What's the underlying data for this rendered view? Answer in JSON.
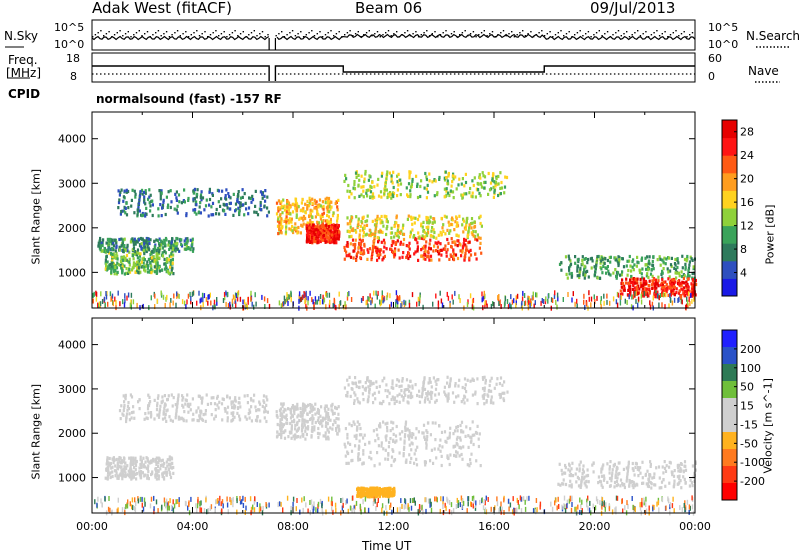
{
  "header": {
    "left": "Adak West (fitACF)",
    "center": "Beam 06",
    "right": "09/Jul/2013"
  },
  "top_panel": {
    "left_label": "N.Sky",
    "right_label": "N.Search",
    "left_ticks": [
      "10^5",
      "10^0"
    ],
    "right_ticks": [
      "10^5",
      "10^0"
    ]
  },
  "freq_panel": {
    "left_label_line1": "Freq.",
    "left_label_line2": "[MHz]",
    "right_label": "Nave",
    "left_ticks": [
      "18",
      "8"
    ],
    "right_ticks": [
      "60",
      "0"
    ]
  },
  "cpid": {
    "label": "CPID",
    "text": "normalsound (fast) -157 RF"
  },
  "colors": {
    "power_scale": [
      "#1a1ae6",
      "#2e4fbf",
      "#2e7a5c",
      "#3aa35a",
      "#8fd13a",
      "#ffd21f",
      "#ff9d1f",
      "#ff5a14",
      "#ff1414",
      "#e60000"
    ],
    "velocity_scale": [
      "#2020ff",
      "#2a52c8",
      "#2e7a55",
      "#6fbf3a",
      "#cfcfcf",
      "#cfcfcf",
      "#ffb21f",
      "#ff7a1f",
      "#ff3a14",
      "#ff0000"
    ]
  },
  "chart_data": [
    {
      "type": "heatmap",
      "name": "Power",
      "ylabel": "Slant Range [km]",
      "yticks": [
        1000,
        2000,
        3000,
        4000
      ],
      "ylim": [
        200,
        4600
      ],
      "xlim": [
        0,
        24
      ],
      "colorbar_label": "Power [dB]",
      "colorbar_ticks": [
        "4",
        "8",
        "12",
        "16",
        "20",
        "24",
        "28"
      ],
      "colorbar_range": [
        0,
        30
      ],
      "features": [
        {
          "t0": 0.5,
          "t1": 3.2,
          "r0": 1000,
          "r1": 1500,
          "v": 12
        },
        {
          "t0": 0.2,
          "t1": 4.0,
          "r0": 1500,
          "r1": 1800,
          "v": 9
        },
        {
          "t0": 1.0,
          "t1": 7.0,
          "r0": 2300,
          "r1": 2900,
          "v": 7
        },
        {
          "t0": 7.3,
          "t1": 9.8,
          "r0": 1900,
          "r1": 2700,
          "v": 18
        },
        {
          "t0": 8.5,
          "t1": 9.8,
          "r0": 1700,
          "r1": 2100,
          "v": 26
        },
        {
          "t0": 10.0,
          "t1": 15.5,
          "r0": 1300,
          "r1": 1800,
          "v": 24
        },
        {
          "t0": 10.0,
          "t1": 15.5,
          "r0": 1800,
          "r1": 2300,
          "v": 16
        },
        {
          "t0": 10.0,
          "t1": 16.5,
          "r0": 2700,
          "r1": 3300,
          "v": 14
        },
        {
          "t0": 18.5,
          "t1": 24.0,
          "r0": 900,
          "r1": 1400,
          "v": 10
        },
        {
          "t0": 21.0,
          "t1": 24.0,
          "r0": 500,
          "r1": 900,
          "v": 26
        }
      ]
    },
    {
      "type": "heatmap",
      "name": "Velocity",
      "ylabel": "Slant Range [km]",
      "yticks": [
        1000,
        2000,
        3000,
        4000
      ],
      "ylim": [
        200,
        4600
      ],
      "xlim": [
        0,
        24
      ],
      "xticks": [
        "00:00",
        "04:00",
        "08:00",
        "12:00",
        "16:00",
        "20:00",
        "00:00"
      ],
      "xlabel": "Time UT",
      "colorbar_label": "Velocity [m s^-1]",
      "colorbar_ticks": [
        "200",
        "100",
        "50",
        "15",
        "-15",
        "-50",
        "-100",
        "-200"
      ],
      "colorbar_range": [
        -250,
        250
      ],
      "features": [
        {
          "t0": 0.5,
          "t1": 3.2,
          "r0": 1000,
          "r1": 1500,
          "v": 0
        },
        {
          "t0": 1.0,
          "t1": 7.0,
          "r0": 2300,
          "r1": 2900,
          "v": 0
        },
        {
          "t0": 7.3,
          "t1": 9.8,
          "r0": 1900,
          "r1": 2700,
          "v": 0
        },
        {
          "t0": 10.0,
          "t1": 15.5,
          "r0": 1300,
          "r1": 2300,
          "v": -10
        },
        {
          "t0": 10.5,
          "t1": 12.0,
          "r0": 600,
          "r1": 800,
          "v": -60
        },
        {
          "t0": 10.0,
          "t1": 16.5,
          "r0": 2700,
          "r1": 3300,
          "v": 0
        },
        {
          "t0": 18.5,
          "t1": 24.0,
          "r0": 800,
          "r1": 1400,
          "v": 0
        }
      ]
    }
  ]
}
